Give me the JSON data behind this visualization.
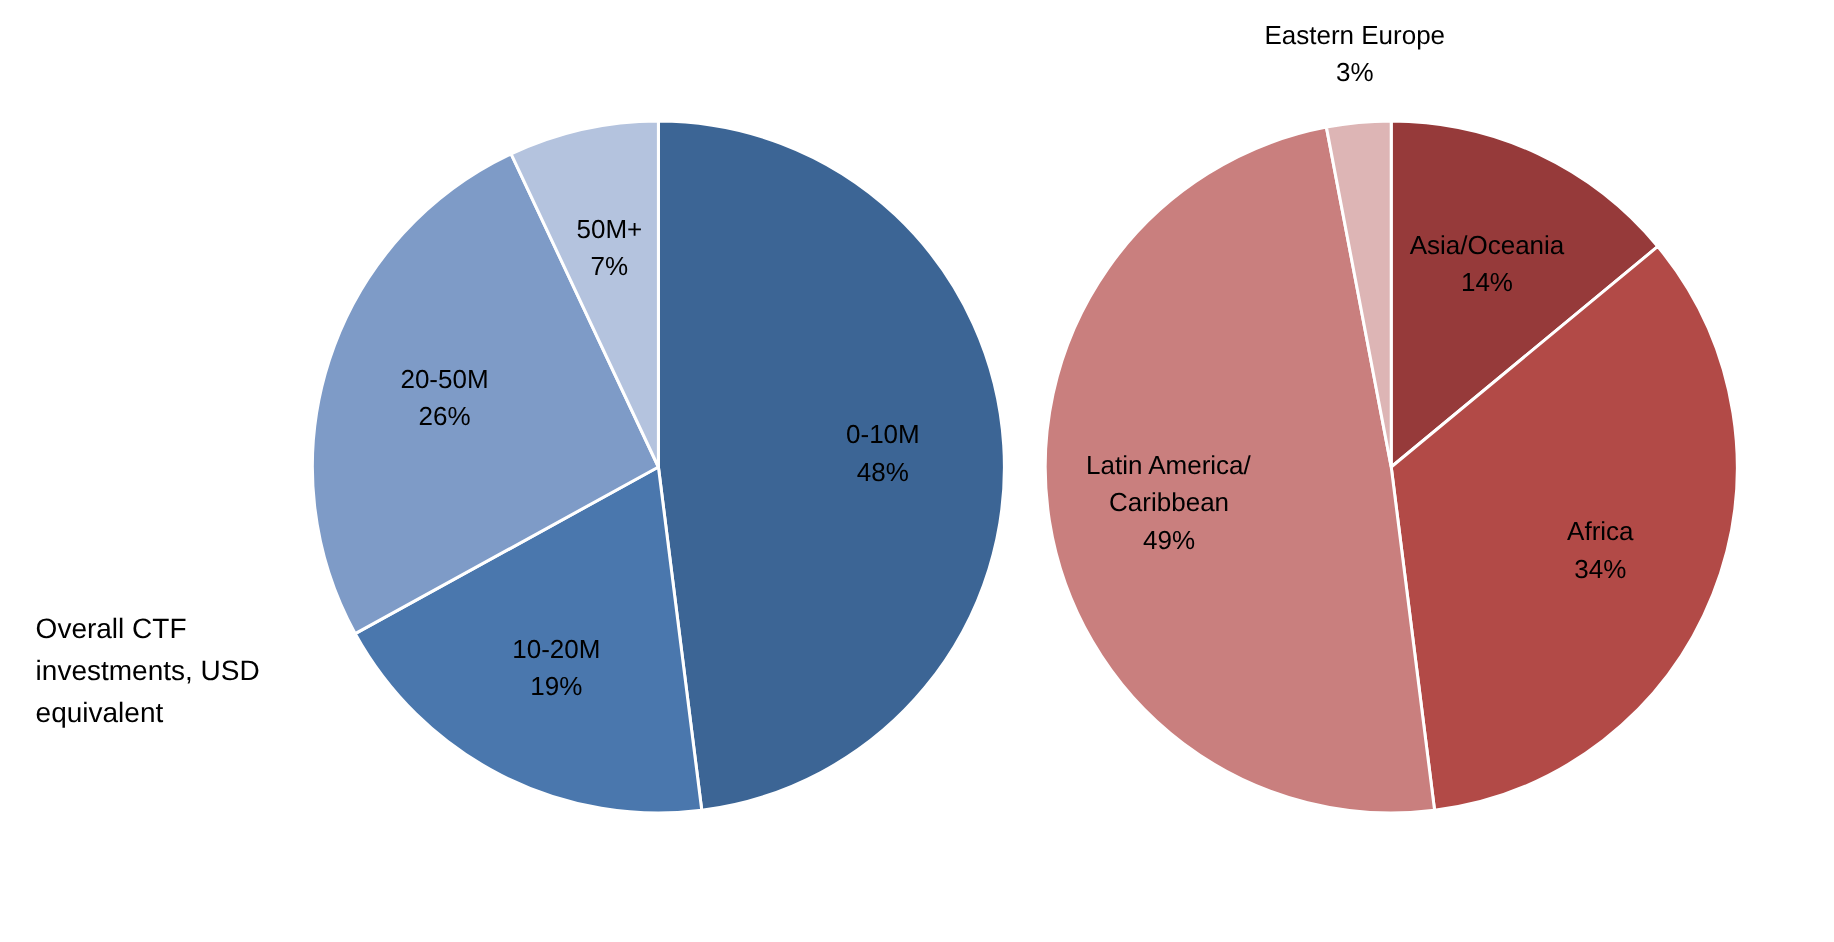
{
  "chart_data": [
    {
      "type": "pie",
      "categories": [
        "0-10M",
        "10-20M",
        "20-50M",
        "50M+"
      ],
      "values": [
        48,
        19,
        26,
        7
      ],
      "value_labels": [
        "48%",
        "19%",
        "26%",
        "7%"
      ],
      "colors": [
        "#3c6595",
        "#4a77ad",
        "#7e9bc7",
        "#b4c3de"
      ],
      "annotations": [
        "Overall CTF investments, USD equivalent"
      ]
    },
    {
      "type": "pie",
      "categories": [
        "Asia/Oceania",
        "Africa",
        "Latin America/ Caribbean",
        "Eastern Europe"
      ],
      "values": [
        14,
        34,
        49,
        3
      ],
      "value_labels": [
        "14%",
        "34%",
        "49%",
        "3%"
      ],
      "colors": [
        "#963a3a",
        "#b24a47",
        "#c97f7e",
        "#ddb5b5"
      ]
    }
  ]
}
